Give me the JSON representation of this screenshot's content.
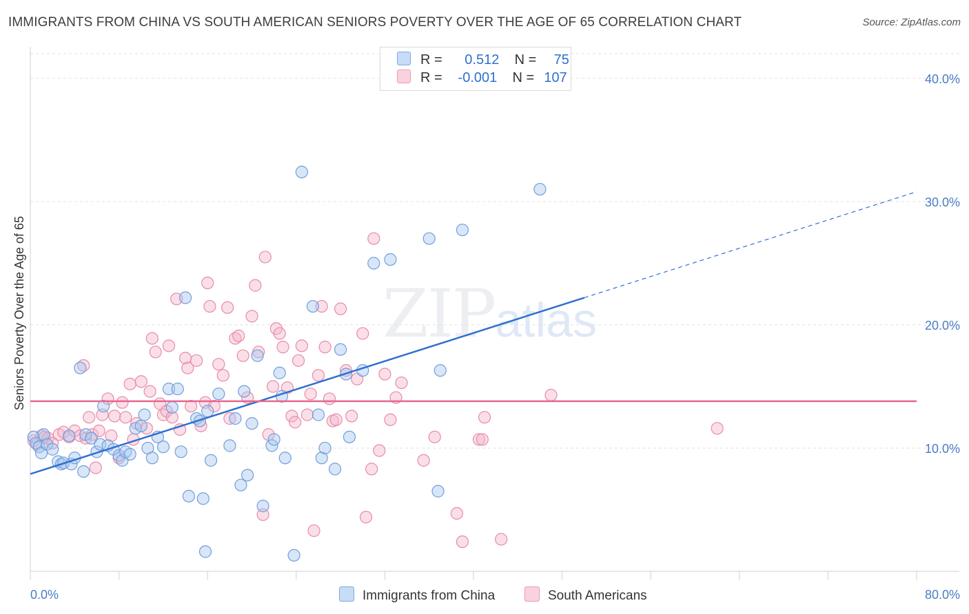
{
  "title": "IMMIGRANTS FROM CHINA VS SOUTH AMERICAN SENIORS POVERTY OVER THE AGE OF 65 CORRELATION CHART",
  "source": "Source: ZipAtlas.com",
  "watermark": {
    "zip": "ZIP",
    "atlas": "atlas"
  },
  "legend": {
    "rows": [
      {
        "r_label": "R =",
        "r_value": "0.512",
        "n_label": "N =",
        "n_value": "75",
        "color": "#a8c8f0"
      },
      {
        "r_label": "R =",
        "r_value": "-0.001",
        "n_label": "N =",
        "n_value": "107",
        "color": "#f5b8cc"
      }
    ]
  },
  "bottom_legend": {
    "china": "Immigrants from China",
    "south": "South Americans"
  },
  "colors": {
    "china_fill": "#a8c8f0",
    "china_stroke": "#6f9fdc",
    "china_line": "#2f6fd0",
    "south_fill": "#f5b8cc",
    "south_stroke": "#e98aa8",
    "south_line": "#e8668f",
    "tick_text": "#4a7cc4"
  },
  "chart_data": {
    "type": "scatter",
    "title": "IMMIGRANTS FROM CHINA VS SOUTH AMERICAN SENIORS POVERTY OVER THE AGE OF 65 CORRELATION CHART",
    "xlabel": "",
    "ylabel": "Seniors Poverty Over the Age of 65",
    "xlim": [
      0,
      80
    ],
    "ylim": [
      0,
      42
    ],
    "x_tick_labels": [
      "0.0%",
      "80.0%"
    ],
    "y_ticks": [
      10,
      20,
      30,
      40
    ],
    "y_tick_labels": [
      "10.0%",
      "20.0%",
      "30.0%",
      "40.0%"
    ],
    "grid": true,
    "series": [
      {
        "name": "Immigrants from China",
        "points": [
          [
            0.3,
            10.9
          ],
          [
            0.5,
            10.4
          ],
          [
            0.8,
            10.1
          ],
          [
            1.0,
            9.6
          ],
          [
            1.2,
            11.1
          ],
          [
            1.5,
            10.3
          ],
          [
            2.0,
            9.9
          ],
          [
            2.5,
            8.9
          ],
          [
            2.8,
            8.7
          ],
          [
            3.0,
            8.8
          ],
          [
            3.5,
            11.0
          ],
          [
            3.7,
            8.7
          ],
          [
            4.0,
            9.2
          ],
          [
            4.5,
            16.5
          ],
          [
            4.8,
            8.1
          ],
          [
            5.0,
            11.1
          ],
          [
            5.5,
            10.8
          ],
          [
            6.0,
            9.7
          ],
          [
            6.3,
            10.3
          ],
          [
            6.6,
            13.4
          ],
          [
            7.0,
            10.2
          ],
          [
            7.5,
            9.9
          ],
          [
            8.0,
            9.4
          ],
          [
            8.3,
            9.0
          ],
          [
            8.6,
            9.7
          ],
          [
            9.0,
            9.5
          ],
          [
            9.5,
            11.6
          ],
          [
            10.0,
            11.8
          ],
          [
            10.3,
            12.7
          ],
          [
            10.6,
            10.0
          ],
          [
            11.0,
            9.2
          ],
          [
            11.5,
            10.9
          ],
          [
            12.0,
            10.1
          ],
          [
            12.5,
            14.8
          ],
          [
            12.8,
            13.3
          ],
          [
            13.3,
            14.8
          ],
          [
            13.6,
            9.7
          ],
          [
            14.0,
            22.2
          ],
          [
            14.3,
            6.1
          ],
          [
            15.0,
            12.4
          ],
          [
            15.3,
            12.2
          ],
          [
            15.6,
            5.9
          ],
          [
            15.8,
            1.6
          ],
          [
            16.0,
            13.0
          ],
          [
            16.3,
            9.0
          ],
          [
            17.0,
            14.4
          ],
          [
            18.0,
            10.2
          ],
          [
            18.5,
            12.4
          ],
          [
            19.0,
            7.0
          ],
          [
            19.3,
            14.6
          ],
          [
            19.6,
            7.8
          ],
          [
            20.0,
            12.0
          ],
          [
            20.5,
            17.5
          ],
          [
            21.0,
            5.3
          ],
          [
            21.8,
            10.2
          ],
          [
            22.0,
            10.7
          ],
          [
            22.5,
            16.1
          ],
          [
            22.7,
            14.2
          ],
          [
            23.0,
            9.2
          ],
          [
            23.8,
            1.3
          ],
          [
            24.5,
            32.4
          ],
          [
            25.5,
            21.5
          ],
          [
            26.0,
            12.7
          ],
          [
            26.3,
            9.2
          ],
          [
            26.6,
            10.0
          ],
          [
            27.5,
            8.3
          ],
          [
            28.0,
            18.0
          ],
          [
            28.5,
            16.0
          ],
          [
            28.8,
            10.9
          ],
          [
            30.0,
            16.3
          ],
          [
            31.0,
            25.0
          ],
          [
            32.5,
            25.3
          ],
          [
            36.0,
            27.0
          ],
          [
            36.8,
            6.5
          ],
          [
            37.0,
            16.3
          ],
          [
            39.0,
            27.7
          ],
          [
            46.0,
            31.0
          ]
        ]
      },
      {
        "name": "South Americans",
        "points": [
          [
            0.3,
            10.6
          ],
          [
            0.6,
            10.3
          ],
          [
            1.0,
            11.0
          ],
          [
            1.3,
            10.9
          ],
          [
            1.6,
            10.8
          ],
          [
            2.0,
            10.4
          ],
          [
            2.6,
            11.1
          ],
          [
            3.0,
            11.3
          ],
          [
            3.5,
            10.9
          ],
          [
            4.0,
            11.4
          ],
          [
            4.5,
            11.0
          ],
          [
            4.8,
            16.7
          ],
          [
            5.0,
            10.8
          ],
          [
            5.3,
            12.5
          ],
          [
            5.6,
            11.1
          ],
          [
            5.9,
            8.4
          ],
          [
            6.2,
            11.4
          ],
          [
            6.5,
            12.7
          ],
          [
            7.0,
            14.0
          ],
          [
            7.3,
            11.0
          ],
          [
            7.6,
            12.6
          ],
          [
            8.0,
            9.2
          ],
          [
            8.3,
            13.7
          ],
          [
            8.6,
            12.5
          ],
          [
            9.0,
            15.2
          ],
          [
            9.3,
            10.7
          ],
          [
            9.6,
            12.0
          ],
          [
            10.0,
            15.4
          ],
          [
            10.5,
            11.6
          ],
          [
            10.8,
            14.6
          ],
          [
            11.0,
            18.9
          ],
          [
            11.3,
            17.8
          ],
          [
            11.7,
            13.6
          ],
          [
            12.0,
            12.7
          ],
          [
            12.3,
            13.0
          ],
          [
            12.5,
            18.3
          ],
          [
            12.8,
            12.5
          ],
          [
            13.2,
            22.1
          ],
          [
            13.5,
            11.5
          ],
          [
            14.0,
            17.3
          ],
          [
            14.2,
            16.5
          ],
          [
            14.5,
            13.4
          ],
          [
            15.0,
            17.1
          ],
          [
            15.4,
            11.8
          ],
          [
            15.8,
            13.7
          ],
          [
            16.0,
            23.4
          ],
          [
            16.2,
            21.5
          ],
          [
            16.6,
            13.4
          ],
          [
            17.0,
            16.8
          ],
          [
            17.4,
            15.9
          ],
          [
            17.8,
            21.4
          ],
          [
            18.0,
            12.4
          ],
          [
            18.5,
            18.9
          ],
          [
            18.8,
            19.1
          ],
          [
            19.2,
            17.5
          ],
          [
            19.6,
            14.1
          ],
          [
            20.0,
            20.7
          ],
          [
            20.3,
            23.2
          ],
          [
            20.6,
            17.8
          ],
          [
            21.0,
            4.6
          ],
          [
            21.2,
            25.5
          ],
          [
            21.5,
            11.1
          ],
          [
            21.9,
            15.0
          ],
          [
            22.2,
            19.7
          ],
          [
            22.5,
            19.3
          ],
          [
            22.8,
            18.2
          ],
          [
            23.2,
            14.9
          ],
          [
            23.6,
            12.6
          ],
          [
            23.9,
            12.1
          ],
          [
            24.2,
            17.1
          ],
          [
            24.5,
            18.3
          ],
          [
            25.0,
            12.7
          ],
          [
            25.3,
            14.4
          ],
          [
            25.6,
            3.3
          ],
          [
            26.0,
            15.9
          ],
          [
            26.3,
            21.5
          ],
          [
            26.6,
            18.2
          ],
          [
            27.0,
            14.0
          ],
          [
            27.3,
            12.2
          ],
          [
            27.6,
            12.3
          ],
          [
            28.0,
            21.3
          ],
          [
            28.5,
            16.3
          ],
          [
            29.0,
            12.6
          ],
          [
            29.5,
            15.6
          ],
          [
            30.0,
            19.3
          ],
          [
            30.3,
            4.4
          ],
          [
            30.8,
            8.3
          ],
          [
            31.0,
            27.0
          ],
          [
            31.5,
            9.8
          ],
          [
            32.0,
            16.0
          ],
          [
            32.5,
            12.3
          ],
          [
            33.0,
            14.1
          ],
          [
            33.5,
            15.3
          ],
          [
            35.5,
            9.0
          ],
          [
            36.5,
            10.9
          ],
          [
            38.5,
            4.7
          ],
          [
            39.0,
            2.4
          ],
          [
            40.5,
            10.7
          ],
          [
            40.8,
            10.7
          ],
          [
            41.0,
            12.5
          ],
          [
            42.5,
            2.6
          ],
          [
            47.0,
            14.3
          ],
          [
            62.0,
            11.6
          ]
        ]
      }
    ],
    "trendlines": [
      {
        "series": "Immigrants from China",
        "x": [
          0,
          50
        ],
        "y": [
          7.9,
          22.2
        ],
        "dashed_extension_x": [
          50,
          80
        ],
        "dashed_extension_y": [
          22.2,
          30.8
        ]
      },
      {
        "series": "South Americans",
        "x": [
          0,
          80
        ],
        "y": [
          13.8,
          13.8
        ]
      }
    ]
  }
}
